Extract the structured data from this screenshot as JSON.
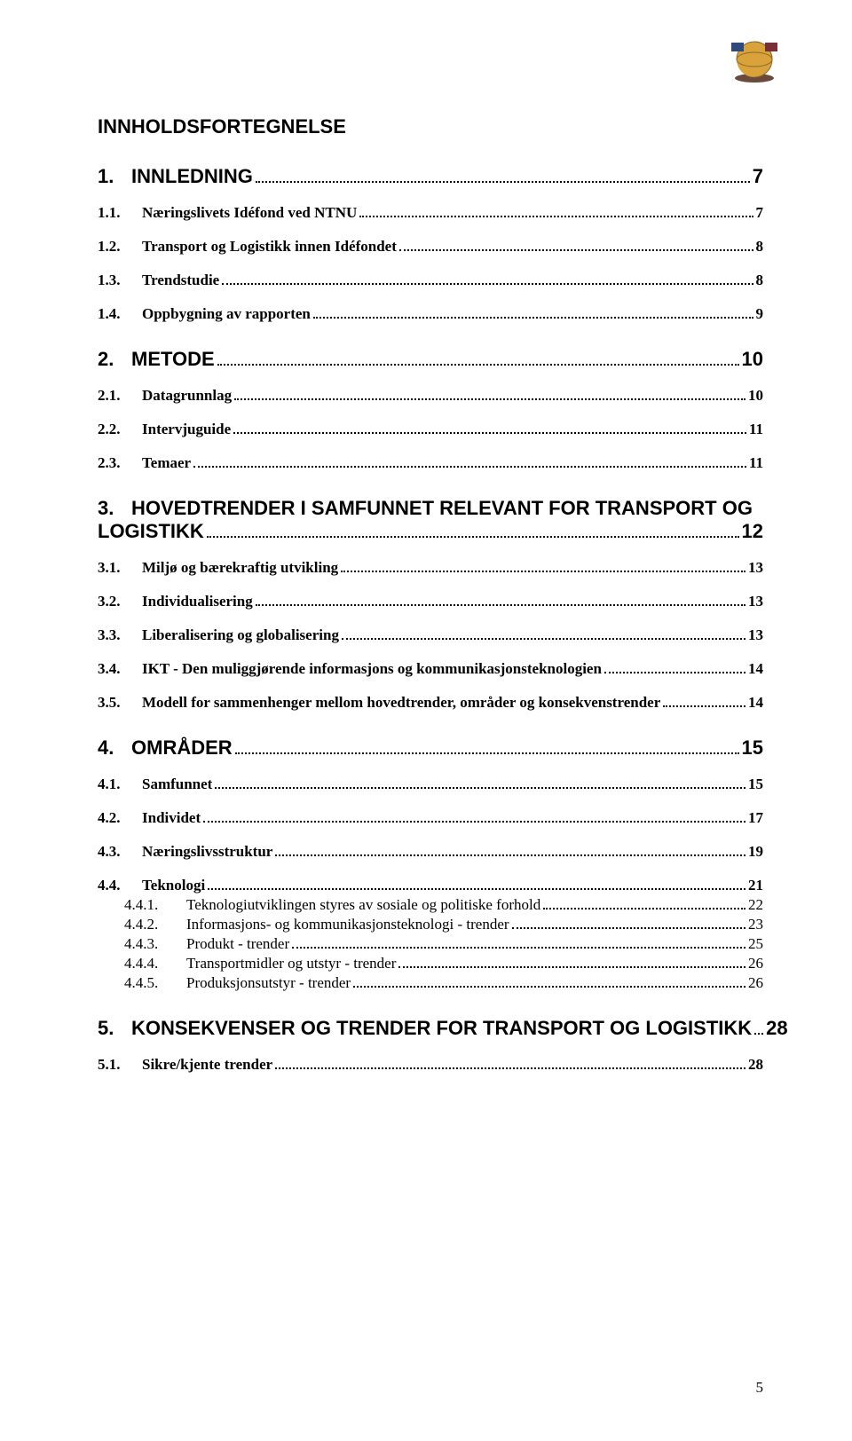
{
  "title": "INNHOLDSFORTEGNELSE",
  "page_number": "5",
  "logo": {
    "semantic": "globe-organization-logo",
    "colors": {
      "globe": "#d9a23b",
      "shadow": "#6a4a3a",
      "flag_left": "#2f4a7a",
      "flag_right": "#7a2f38"
    }
  },
  "entries": [
    {
      "level": 1,
      "num": "1.",
      "text": "INNLEDNING",
      "page": "7"
    },
    {
      "level": 2,
      "num": "1.1.",
      "text": "Næringslivets Idéfond ved NTNU",
      "page": "7"
    },
    {
      "level": 2,
      "num": "1.2.",
      "text": "Transport og Logistikk innen Idéfondet",
      "page": "8"
    },
    {
      "level": 2,
      "num": "1.3.",
      "text": "Trendstudie",
      "page": "8"
    },
    {
      "level": 2,
      "num": "1.4.",
      "text": "Oppbygning av rapporten",
      "page": "9"
    },
    {
      "level": 1,
      "num": "2.",
      "text": "METODE",
      "page": "10"
    },
    {
      "level": 2,
      "num": "2.1.",
      "text": "Datagrunnlag",
      "page": "10"
    },
    {
      "level": 2,
      "num": "2.2.",
      "text": "Intervjuguide",
      "page": "11"
    },
    {
      "level": 2,
      "num": "2.3.",
      "text": "Temaer",
      "page": "11"
    },
    {
      "level": 1,
      "num": "3.",
      "text_line1": "HOVEDTRENDER I SAMFUNNET RELEVANT FOR TRANSPORT OG",
      "text_line2": "LOGISTIKK",
      "page": "12",
      "wrap": true
    },
    {
      "level": 2,
      "num": "3.1.",
      "text": "Miljø og bærekraftig utvikling",
      "page": "13"
    },
    {
      "level": 2,
      "num": "3.2.",
      "text": "Individualisering",
      "page": "13"
    },
    {
      "level": 2,
      "num": "3.3.",
      "text": "Liberalisering og globalisering",
      "page": "13"
    },
    {
      "level": 2,
      "num": "3.4.",
      "text": "IKT - Den muliggjørende informasjons og kommunikasjonsteknologien",
      "page": "14"
    },
    {
      "level": 2,
      "num": "3.5.",
      "text": "Modell for sammenhenger mellom hovedtrender, områder og konsekvenstrender",
      "page": "14"
    },
    {
      "level": 1,
      "num": "4.",
      "text": "OMRÅDER",
      "page": "15"
    },
    {
      "level": 2,
      "num": "4.1.",
      "text": "Samfunnet",
      "page": "15"
    },
    {
      "level": 2,
      "num": "4.2.",
      "text": "Individet",
      "page": "17"
    },
    {
      "level": 2,
      "num": "4.3.",
      "text": "Næringslivsstruktur",
      "page": "19"
    },
    {
      "level": 2,
      "num": "4.4.",
      "text": "Teknologi",
      "page": "21"
    },
    {
      "level": 3,
      "num": "4.4.1.",
      "text": "Teknologiutviklingen styres av sosiale og politiske forhold",
      "page": "22"
    },
    {
      "level": 3,
      "num": "4.4.2.",
      "text": "Informasjons- og kommunikasjonsteknologi  - trender",
      "page": "23"
    },
    {
      "level": 3,
      "num": "4.4.3.",
      "text": "Produkt - trender",
      "page": "25"
    },
    {
      "level": 3,
      "num": "4.4.4.",
      "text": "Transportmidler og utstyr - trender",
      "page": "26"
    },
    {
      "level": 3,
      "num": "4.4.5.",
      "text": "Produksjonsutstyr - trender",
      "page": "26"
    },
    {
      "level": 1,
      "num": "5.",
      "text": "KONSEKVENSER OG TRENDER FOR TRANSPORT OG LOGISTIKK",
      "page": "28"
    },
    {
      "level": 2,
      "num": "5.1.",
      "text": "Sikre/kjente trender",
      "page": "28"
    }
  ]
}
